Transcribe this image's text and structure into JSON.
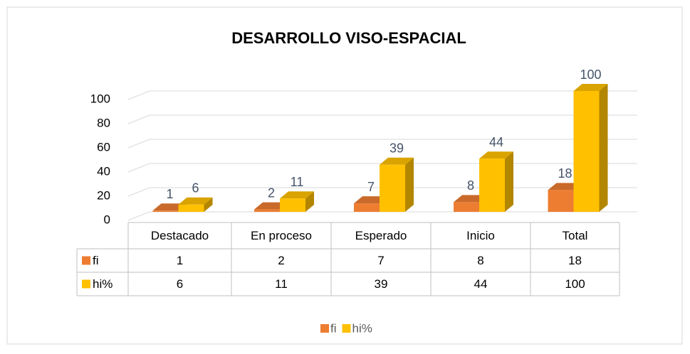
{
  "chart_data": {
    "type": "bar3d",
    "title": "DESARROLLO VISO-ESPACIAL",
    "categories": [
      "Destacado",
      "En proceso",
      "Esperado",
      "Inicio",
      "Total"
    ],
    "series": [
      {
        "name": "fi",
        "color": "#ed7d31",
        "values": [
          1,
          2,
          7,
          8,
          18
        ]
      },
      {
        "name": "hi%",
        "color": "#ffc000",
        "values": [
          6,
          11,
          39,
          44,
          100
        ]
      }
    ],
    "ylim": [
      0,
      100
    ],
    "yticks": [
      0,
      20,
      40,
      60,
      80,
      100
    ],
    "grid": true,
    "legend": "bottom",
    "data_table": true
  }
}
